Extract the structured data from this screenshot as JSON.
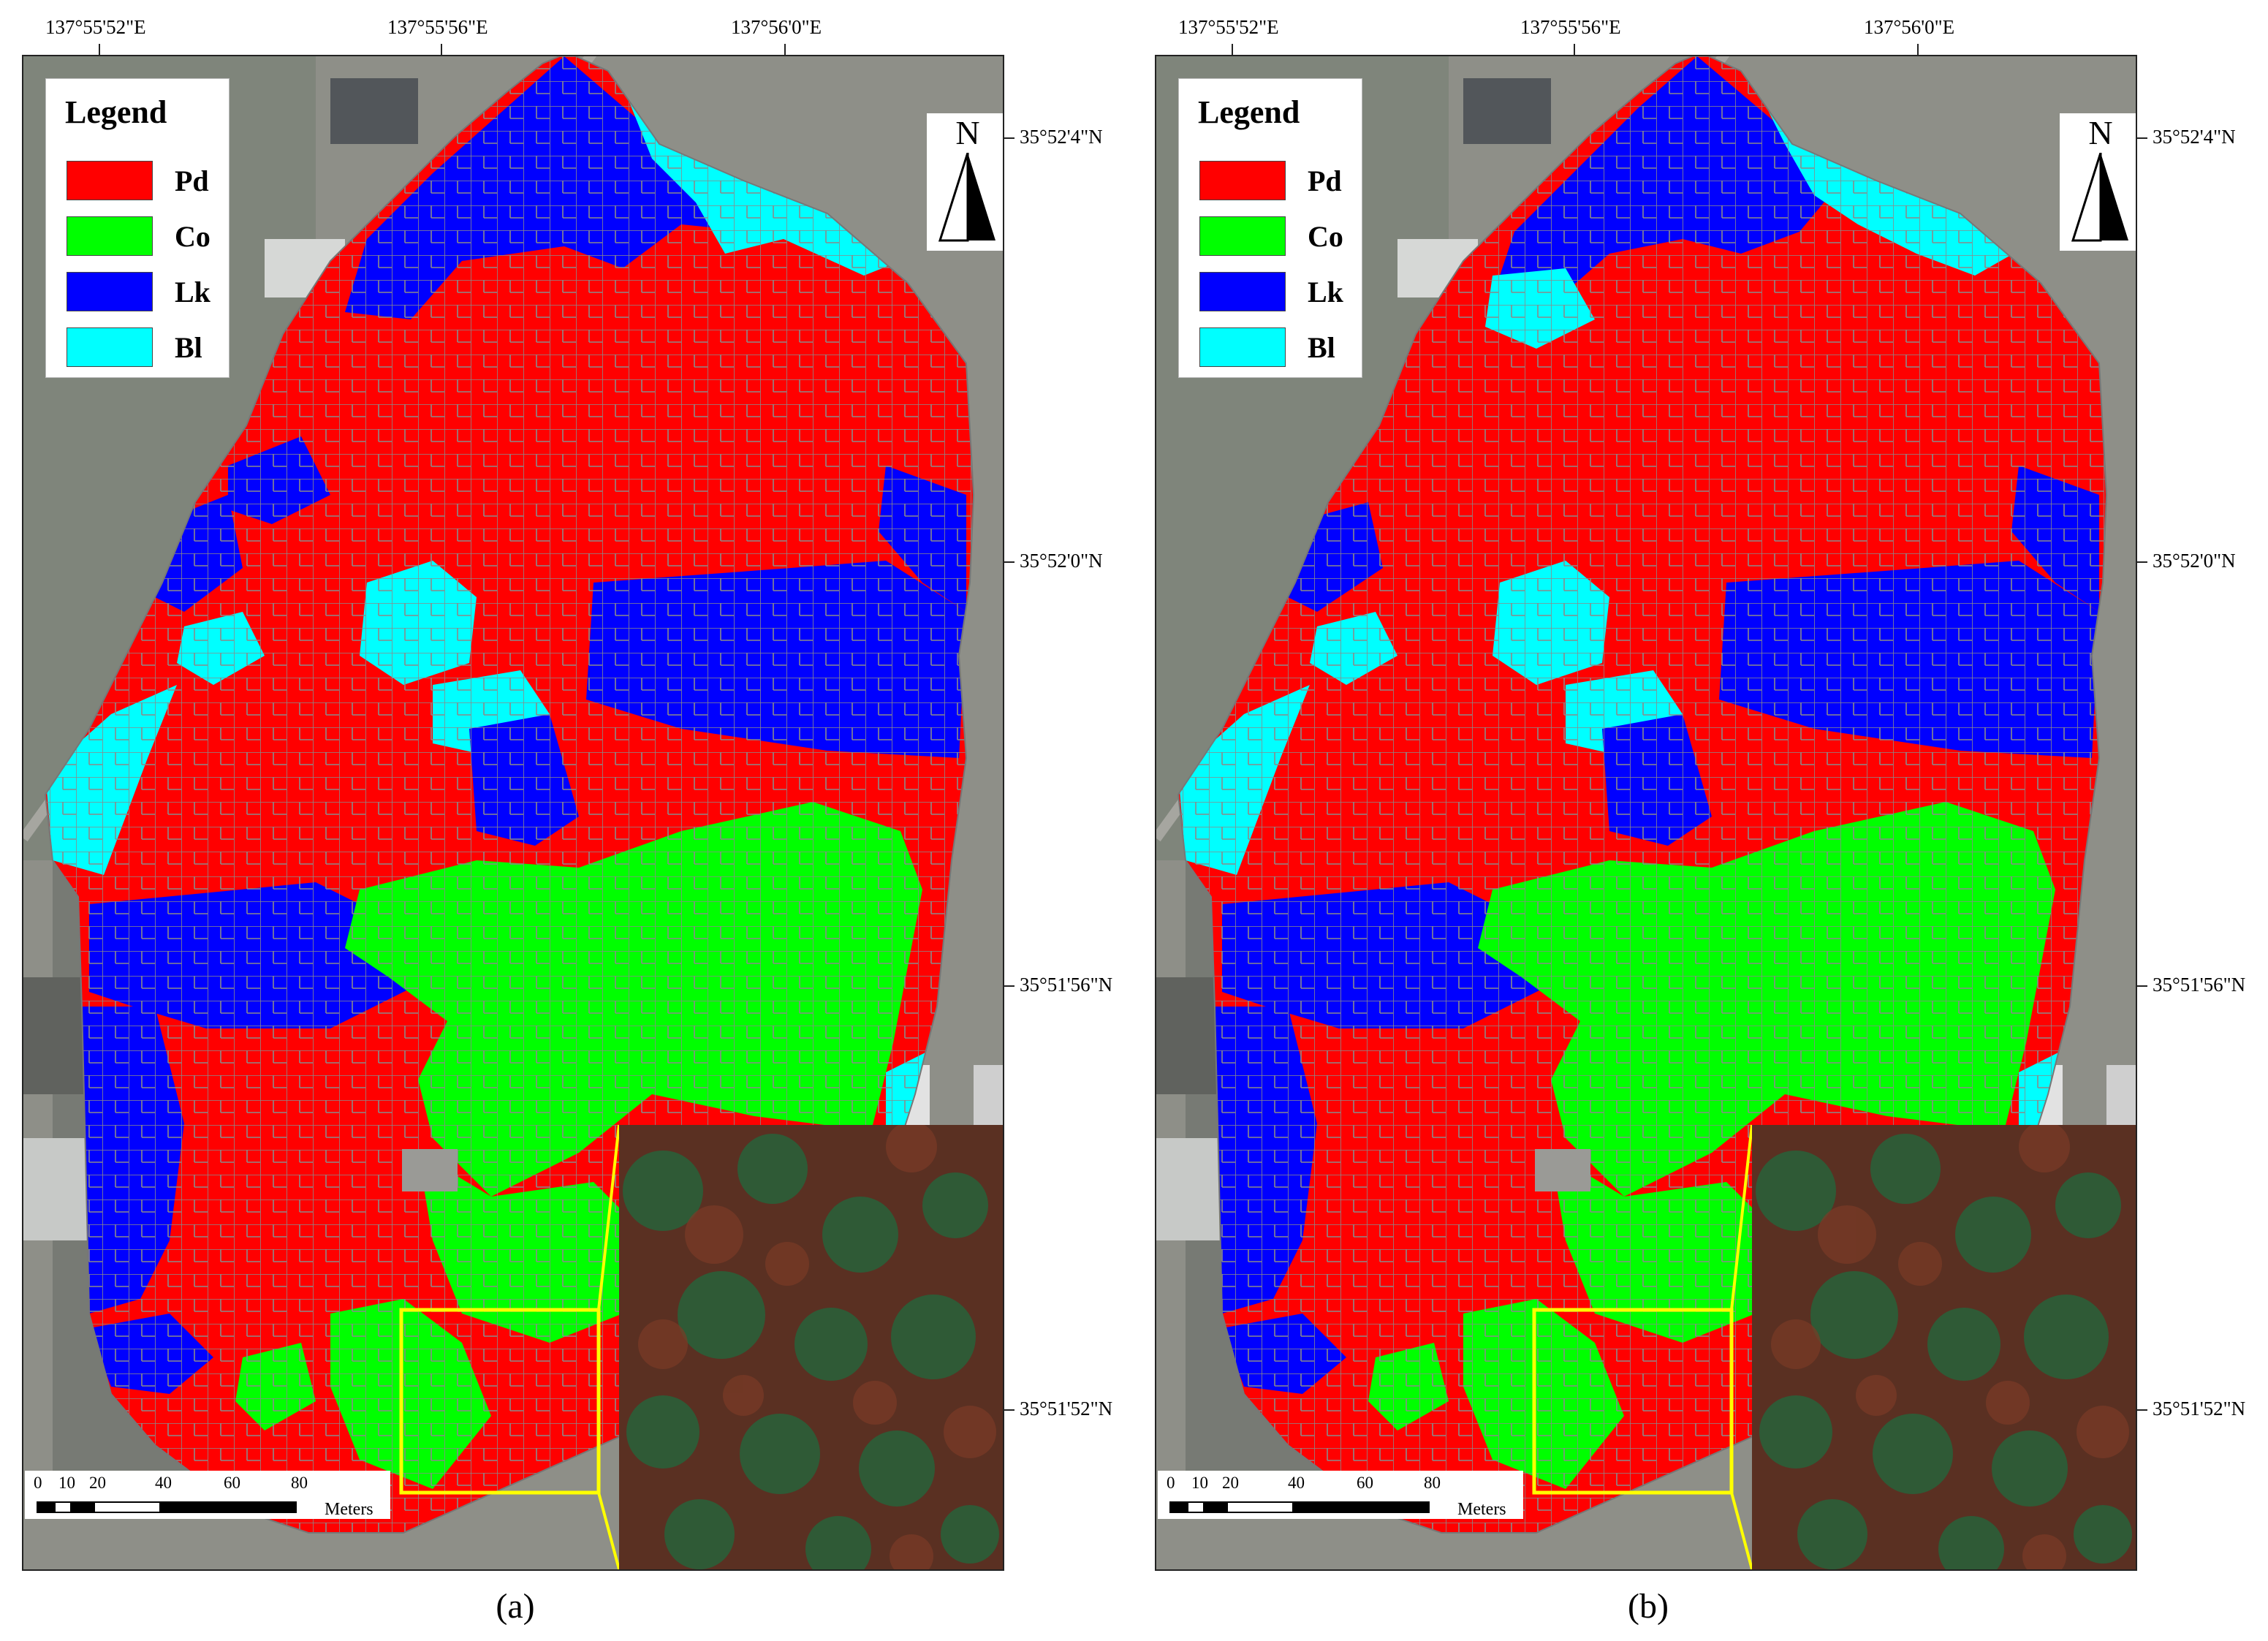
{
  "panels": [
    {
      "caption": "(a)",
      "lon_ticks": [
        "137°55'52\"E",
        "137°55'56\"E",
        "137°56'0\"E"
      ],
      "lat_ticks": [
        "35°52'4\"N",
        "35°52'0\"N",
        "35°51'56\"N",
        "35°51'52\"N"
      ],
      "legend": {
        "title": "Legend",
        "items": [
          {
            "label": "Pd",
            "color": "#ff0000"
          },
          {
            "label": "Co",
            "color": "#00ff00"
          },
          {
            "label": "Lk",
            "color": "#0000ff"
          },
          {
            "label": "Bl",
            "color": "#00ffff"
          }
        ]
      },
      "north_arrow": "N",
      "scale_bar": {
        "labels": [
          "0",
          "10",
          "20",
          "40",
          "60",
          "80"
        ],
        "unit": "Meters"
      }
    },
    {
      "caption": "(b)",
      "lon_ticks": [
        "137°55'52\"E",
        "137°55'56\"E",
        "137°56'0\"E"
      ],
      "lat_ticks": [
        "35°52'4\"N",
        "35°52'0\"N",
        "35°51'56\"N",
        "35°51'52\"N"
      ],
      "legend": {
        "title": "Legend",
        "items": [
          {
            "label": "Pd",
            "color": "#ff0000"
          },
          {
            "label": "Co",
            "color": "#00ff00"
          },
          {
            "label": "Lk",
            "color": "#0000ff"
          },
          {
            "label": "Bl",
            "color": "#00ffff"
          }
        ]
      },
      "north_arrow": "N",
      "scale_bar": {
        "labels": [
          "0",
          "10",
          "20",
          "40",
          "60",
          "80"
        ],
        "unit": "Meters"
      }
    }
  ],
  "colors": {
    "pd": "#ff0000",
    "co": "#00ff00",
    "lk": "#0000ff",
    "bl": "#00ffff",
    "highlight_box": "#ffff00",
    "basemap": "#8c8c85"
  }
}
